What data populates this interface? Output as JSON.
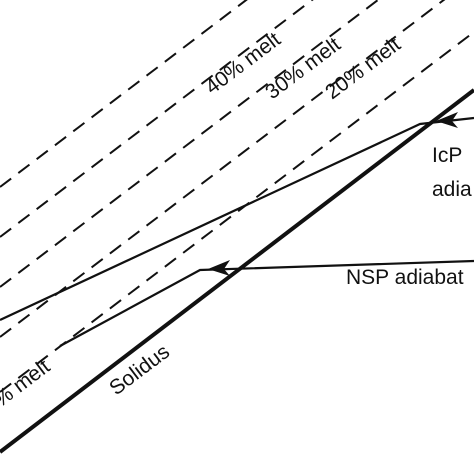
{
  "labels": {
    "melt_40": "40% melt",
    "melt_30": "30% melt",
    "melt_20": "20% melt",
    "melt_left": "% melt",
    "solidus": "Solidus",
    "icp_1": "IcP",
    "icp_2": "adia",
    "nsp": "NSP adiabat"
  }
}
